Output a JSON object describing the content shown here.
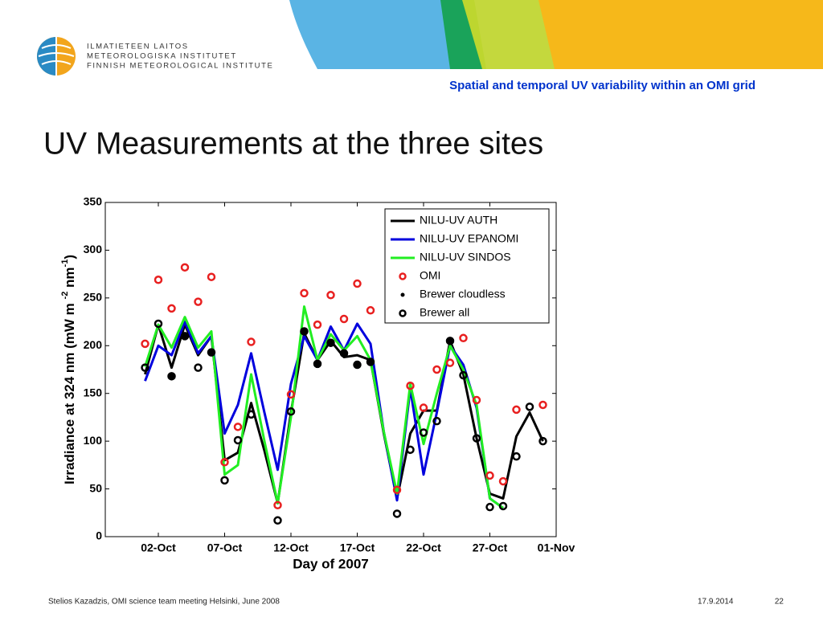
{
  "logo": {
    "lines": [
      "ILMATIETEEN LAITOS",
      "METEOROLOGISKA INSTITUTET",
      "FINNISH METEOROLOGICAL INSTITUTE"
    ]
  },
  "header": "Spatial and temporal UV variability within an OMI grid",
  "slide_title": "UV Measurements at the three sites",
  "footer": {
    "left": "Stelios Kazadzis, OMI science team meeting Helsinki, June 2008",
    "date": "17.9.2014",
    "page": "22"
  },
  "chart_data": {
    "type": "line",
    "xlabel": "Day of 2007",
    "ylabel": [
      "Irradiance at 324 nm (mW m ",
      "-2",
      " nm",
      "-1",
      ")"
    ],
    "x": [
      1,
      2,
      3,
      4,
      5,
      6,
      7,
      8,
      9,
      10,
      11,
      12,
      13,
      14,
      15,
      16,
      17,
      18,
      19,
      20,
      21,
      22,
      23,
      24,
      25,
      26,
      27,
      28,
      29,
      30,
      31
    ],
    "xlim": [
      -2,
      32
    ],
    "xticks": [
      {
        "value": 2,
        "label": "02-Oct"
      },
      {
        "value": 7,
        "label": "07-Oct"
      },
      {
        "value": 12,
        "label": "12-Oct"
      },
      {
        "value": 17,
        "label": "17-Oct"
      },
      {
        "value": 22,
        "label": "22-Oct"
      },
      {
        "value": 27,
        "label": "27-Oct"
      },
      {
        "value": 32,
        "label": "01-Nov"
      }
    ],
    "ylim": [
      0,
      350
    ],
    "yticks": [
      0,
      50,
      100,
      150,
      200,
      250,
      300,
      350
    ],
    "legend": "upper right",
    "series": [
      {
        "name": "NILU-UV AUTH",
        "color": "#000000",
        "style": "line",
        "values": [
          170,
          222,
          177,
          222,
          190,
          210,
          80,
          88,
          140,
          90,
          35,
          130,
          213,
          185,
          205,
          188,
          190,
          185,
          108,
          40,
          108,
          132,
          132,
          205,
          170,
          103,
          45,
          40,
          105,
          130,
          100
        ]
      },
      {
        "name": "NILU-UV EPANOMI",
        "color": "#0000dd",
        "style": "line",
        "values": [
          163,
          200,
          190,
          225,
          192,
          210,
          108,
          138,
          192,
          130,
          70,
          160,
          210,
          185,
          220,
          195,
          223,
          202,
          110,
          38,
          155,
          65,
          130,
          200,
          180,
          135,
          40,
          30,
          null,
          null,
          null
        ]
      },
      {
        "name": "NILU-UV SINDOS",
        "color": "#22ee22",
        "style": "line",
        "values": [
          178,
          222,
          198,
          230,
          198,
          215,
          65,
          75,
          170,
          100,
          35,
          125,
          241,
          185,
          212,
          195,
          210,
          185,
          110,
          45,
          160,
          97,
          150,
          200,
          175,
          138,
          40,
          30,
          null,
          null,
          null
        ]
      },
      {
        "name": "OMI",
        "color": "#e82020",
        "style": "open",
        "values": [
          202,
          269,
          239,
          282,
          246,
          272,
          78,
          115,
          204,
          null,
          33,
          149,
          255,
          222,
          253,
          228,
          265,
          237,
          null,
          49,
          158,
          135,
          175,
          182,
          208,
          143,
          64,
          58,
          133,
          null,
          138
        ]
      },
      {
        "name": "Brewer cloudless",
        "color": "#000000",
        "style": "dot",
        "values": [
          null,
          null,
          168,
          210,
          null,
          193,
          null,
          null,
          null,
          null,
          null,
          null,
          215,
          181,
          203,
          192,
          180,
          183,
          null,
          null,
          null,
          null,
          null,
          205,
          null,
          null,
          null,
          null,
          null,
          null,
          null
        ]
      },
      {
        "name": "Brewer all",
        "color": "#000000",
        "style": "open",
        "values": [
          177,
          223,
          168,
          210,
          177,
          193,
          59,
          101,
          128,
          null,
          17,
          131,
          215,
          181,
          203,
          192,
          180,
          183,
          null,
          24,
          91,
          109,
          121,
          205,
          169,
          103,
          31,
          32,
          84,
          136,
          100
        ]
      }
    ]
  }
}
